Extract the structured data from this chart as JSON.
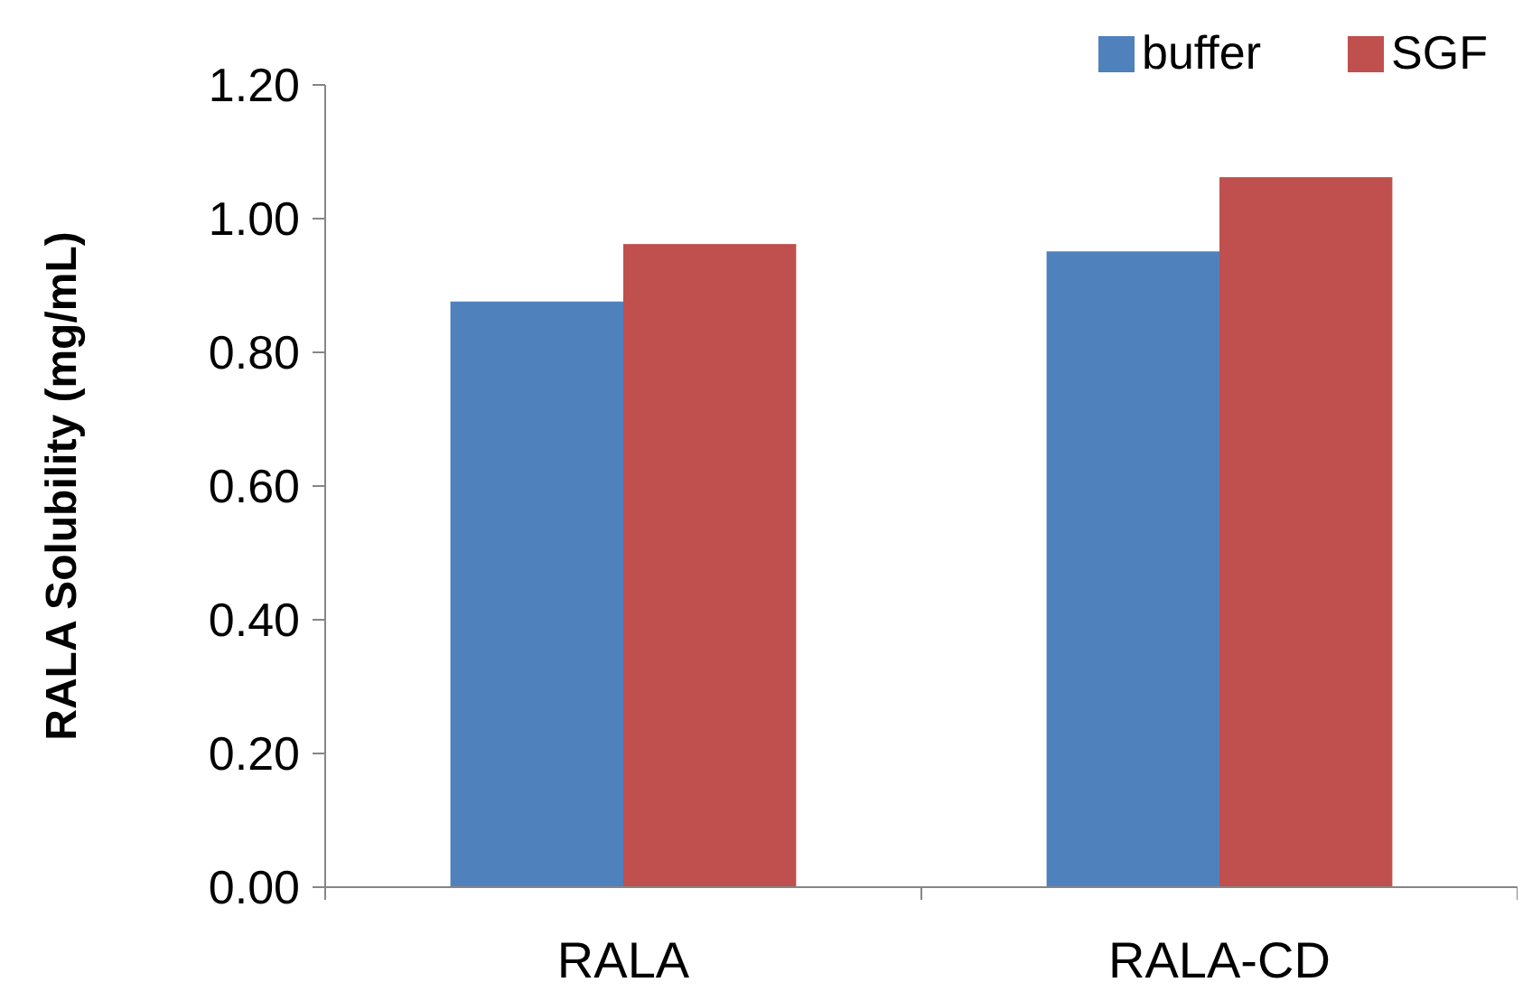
{
  "chart_data": {
    "type": "bar",
    "ylabel": "RALA Solubility (mg/mL)",
    "categories": [
      "RALA",
      "RALA-CD"
    ],
    "series": [
      {
        "name": "buffer",
        "color": "#4f81bd",
        "values": [
          0.876,
          0.951
        ]
      },
      {
        "name": "SGF",
        "color": "#c0504d",
        "values": [
          0.962,
          1.062
        ]
      }
    ],
    "ylim": [
      0,
      1.2
    ],
    "yticks": [
      {
        "value": 0,
        "label": "0.00"
      },
      {
        "value": 0.2,
        "label": "0.20"
      },
      {
        "value": 0.4,
        "label": "0.40"
      },
      {
        "value": 0.6,
        "label": "0.60"
      },
      {
        "value": 0.8,
        "label": "0.80"
      },
      {
        "value": 1,
        "label": "1.00"
      },
      {
        "value": 1.2,
        "label": "1.20"
      }
    ],
    "grid": false,
    "legend": "top right"
  }
}
